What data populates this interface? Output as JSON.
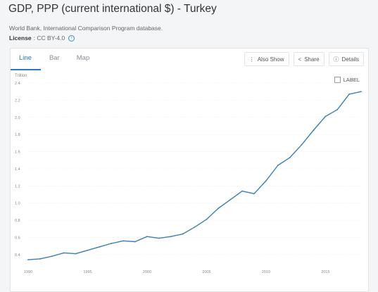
{
  "header": {
    "title": "GDP, PPP (current international $) - Turkey",
    "source": "World Bank, International Comparison Program database.",
    "license_label": "License",
    "license_value": ": CC BY-4.0",
    "info_icon": "info-icon"
  },
  "tabs": [
    {
      "label": "Line",
      "active": true
    },
    {
      "label": "Bar",
      "active": false
    },
    {
      "label": "Map",
      "active": false
    }
  ],
  "actions": [
    {
      "label": "Also Show",
      "icon": "vertical-dots-icon"
    },
    {
      "label": "Share",
      "icon": "share-icon"
    },
    {
      "label": "Details",
      "icon": "info-circle-icon"
    }
  ],
  "label_toggle": "LABEL",
  "colors": {
    "accent": "#2c7bbd",
    "line": "#3a7fb4"
  },
  "chart_data": {
    "type": "line",
    "unit_label": "Trillion",
    "xlim": [
      1990,
      2018
    ],
    "ylim": [
      0.3,
      2.4
    ],
    "x_ticks": [
      1990,
      1995,
      2000,
      2005,
      2010,
      2015
    ],
    "y_ticks": [
      0.4,
      0.6,
      0.8,
      1.0,
      1.2,
      1.4,
      1.6,
      1.8,
      2.0,
      2.2,
      2.4
    ],
    "y_tick_labels": [
      "0.4",
      "0.6",
      "0.8",
      "1.0",
      "1.2",
      "1.4",
      "1.6",
      "1.8",
      "2.0",
      "2.2",
      "2.4"
    ],
    "grid": true,
    "series": [
      {
        "x": [
          1990,
          1991,
          1992,
          1993,
          1994,
          1995,
          1996,
          1997,
          1998,
          1999,
          2000,
          2001,
          2002,
          2003,
          2004,
          2005,
          2006,
          2007,
          2008,
          2009,
          2010,
          2011,
          2012,
          2013,
          2014,
          2015,
          2016,
          2017,
          2018
        ],
        "values": [
          0.34,
          0.35,
          0.38,
          0.42,
          0.41,
          0.45,
          0.49,
          0.53,
          0.56,
          0.55,
          0.61,
          0.59,
          0.61,
          0.64,
          0.72,
          0.81,
          0.94,
          1.04,
          1.14,
          1.11,
          1.26,
          1.44,
          1.53,
          1.68,
          1.85,
          2.01,
          2.09,
          2.27,
          2.3
        ]
      }
    ]
  }
}
